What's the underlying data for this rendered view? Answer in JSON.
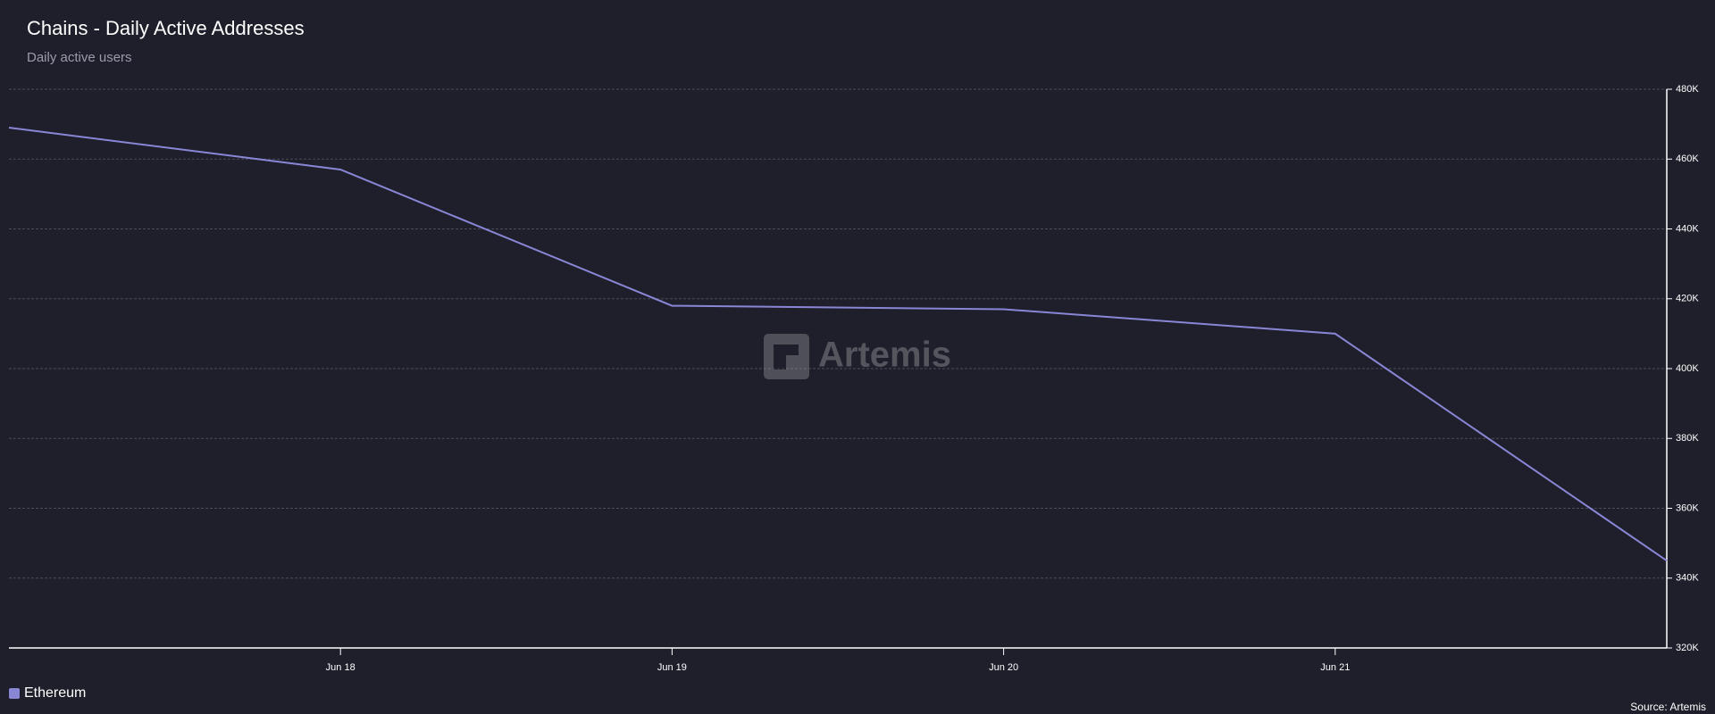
{
  "chart_data": {
    "type": "line",
    "title": "Chains - Daily Active Addresses",
    "subtitle": "Daily active users",
    "categories": [
      null,
      "Jun 18",
      "Jun 19",
      "Jun 20",
      "Jun 21",
      null
    ],
    "series": [
      {
        "name": "Ethereum",
        "color": "#8a86d6",
        "values": [
          469000,
          457000,
          418000,
          417000,
          410000,
          345000
        ]
      }
    ],
    "ylim": [
      320000,
      480000
    ],
    "yticks": [
      {
        "value": 320000,
        "label": "320K"
      },
      {
        "value": 340000,
        "label": "340K"
      },
      {
        "value": 360000,
        "label": "360K"
      },
      {
        "value": 380000,
        "label": "380K"
      },
      {
        "value": 400000,
        "label": "400K"
      },
      {
        "value": 420000,
        "label": "420K"
      },
      {
        "value": 440000,
        "label": "440K"
      },
      {
        "value": 460000,
        "label": "460K"
      },
      {
        "value": 480000,
        "label": "480K"
      }
    ],
    "y_axis_side": "right",
    "grid": true,
    "watermark": "Artemis",
    "source": "Source: Artemis"
  }
}
